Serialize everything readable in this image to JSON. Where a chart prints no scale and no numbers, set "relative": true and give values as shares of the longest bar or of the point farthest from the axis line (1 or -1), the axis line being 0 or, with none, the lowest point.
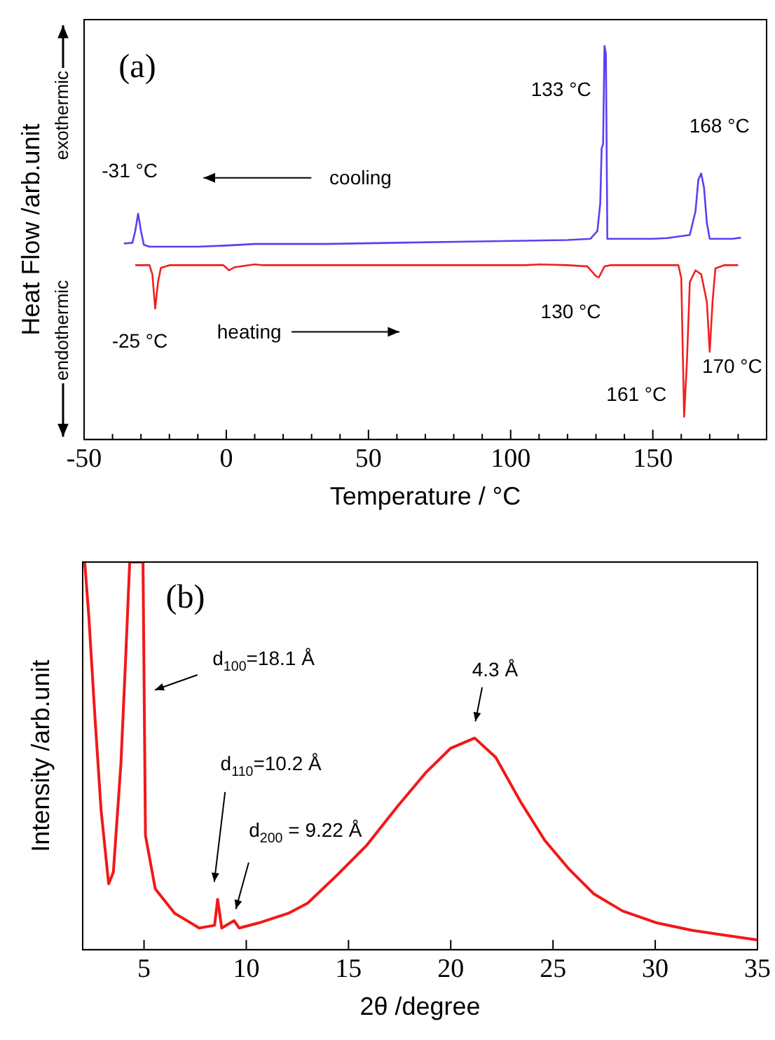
{
  "chart_data": [
    {
      "type": "line",
      "xlabel": "Temperature / °C",
      "ylabel": "Heat Flow /arb.unit",
      "relative": true,
      "grid": false,
      "legend": false,
      "marker": "none",
      "xlim": [
        -50,
        190
      ],
      "xticks": [
        -50,
        {
          "value": -40,
          "label": null
        },
        {
          "value": -30,
          "label": null
        },
        {
          "value": -20,
          "label": null
        },
        {
          "value": -10,
          "label": null
        },
        0,
        {
          "value": 10,
          "label": null
        },
        {
          "value": 20,
          "label": null
        },
        {
          "value": 30,
          "label": null
        },
        {
          "value": 40,
          "label": null
        },
        50,
        {
          "value": 60,
          "label": null
        },
        {
          "value": 70,
          "label": null
        },
        {
          "value": 80,
          "label": null
        },
        {
          "value": 90,
          "label": null
        },
        100,
        {
          "value": 110,
          "label": null
        },
        {
          "value": 120,
          "label": null
        },
        {
          "value": 130,
          "label": null
        },
        {
          "value": 140,
          "label": null
        },
        150,
        {
          "value": 160,
          "label": null
        },
        {
          "value": 170,
          "label": null
        },
        {
          "value": 180,
          "label": null
        }
      ],
      "series": [
        {
          "color": "#5b3ff2",
          "x": [
            -36,
            -33,
            -32,
            -31,
            -30,
            -29,
            -27,
            -10,
            0,
            10,
            35,
            60,
            85,
            120,
            128,
            130.5,
            131.5,
            132,
            132.5,
            133,
            133.5,
            134,
            150,
            155,
            163,
            165,
            166,
            167,
            168,
            169,
            170,
            178,
            181
          ],
          "values": [
            0.498,
            0.5,
            0.53,
            0.574,
            0.53,
            0.495,
            0.49,
            0.49,
            0.493,
            0.497,
            0.497,
            0.5,
            0.503,
            0.507,
            0.51,
            0.53,
            0.6,
            0.74,
            0.75,
            1.0,
            0.98,
            0.51,
            0.51,
            0.512,
            0.52,
            0.58,
            0.66,
            0.676,
            0.64,
            0.55,
            0.51,
            0.51,
            0.513
          ]
        },
        {
          "color": "#f22020",
          "x": [
            -32,
            -27,
            -26,
            -25,
            -24,
            -23,
            -20,
            -1,
            1,
            3,
            10,
            13,
            105,
            110,
            120,
            127,
            130,
            131,
            133,
            135,
            159,
            160,
            161,
            162,
            163,
            165,
            167,
            169,
            170,
            171,
            172,
            175,
            180
          ],
          "values": [
            0.443,
            0.443,
            0.42,
            0.333,
            0.4,
            0.436,
            0.443,
            0.443,
            0.43,
            0.438,
            0.445,
            0.443,
            0.443,
            0.445,
            0.443,
            0.44,
            0.415,
            0.412,
            0.44,
            0.443,
            0.443,
            0.41,
            0.058,
            0.2,
            0.4,
            0.43,
            0.42,
            0.35,
            0.223,
            0.35,
            0.435,
            0.443,
            0.443
          ]
        }
      ],
      "annotations": [
        "(a)",
        {
          "text": "133 °C",
          "x": 133,
          "y": 1.0
        },
        {
          "text": "168 °C",
          "x": 167,
          "y": 0.676
        },
        {
          "text": "-31 °C",
          "x": -31,
          "y": 0.574
        },
        "cooling",
        "heating",
        {
          "text": "-25 °C",
          "x": -25,
          "y": 0.333
        },
        {
          "text": "130 °C",
          "x": 130.5,
          "y": 0.412
        },
        {
          "text": "161 °C",
          "x": 161,
          "y": 0.058
        },
        {
          "text": "170 °C",
          "x": 170,
          "y": 0.223
        },
        "exothermic",
        "endothermic"
      ]
    },
    {
      "type": "line",
      "xlabel": "2θ /degree",
      "ylabel": "Intensity /arb.unit",
      "relative": true,
      "grid": false,
      "legend": false,
      "marker": "none",
      "xlim": [
        2,
        35
      ],
      "xticks": [
        5,
        10,
        15,
        20,
        25,
        30,
        35
      ],
      "x": [
        2.1,
        2.3,
        2.6,
        2.9,
        3.27,
        3.5,
        3.87,
        4.1,
        4.3,
        4.95,
        5.07,
        5.55,
        6.5,
        7.7,
        8.45,
        8.6,
        8.8,
        9.4,
        9.65,
        10.6,
        12.06,
        13.0,
        14.47,
        15.9,
        17.4,
        18.8,
        20.0,
        21.17,
        22.2,
        23.4,
        24.6,
        25.8,
        27.0,
        28.4,
        30.1,
        31.8,
        35
      ],
      "values": [
        1.0,
        0.86,
        0.6,
        0.36,
        0.17,
        0.2,
        0.48,
        0.75,
        1.0,
        1.0,
        0.295,
        0.157,
        0.094,
        0.056,
        0.063,
        0.13,
        0.056,
        0.075,
        0.056,
        0.069,
        0.094,
        0.12,
        0.194,
        0.27,
        0.37,
        0.458,
        0.52,
        0.546,
        0.496,
        0.383,
        0.282,
        0.207,
        0.144,
        0.1,
        0.069,
        0.05,
        0.025
      ],
      "color": "#f21818",
      "annotations": [
        "(b)",
        "d$_{100}$=18.1 Å",
        "4.3 Å",
        "d$_{110}$=10.2 Å",
        "d$_{200}$ = 9.22 Å"
      ]
    }
  ]
}
